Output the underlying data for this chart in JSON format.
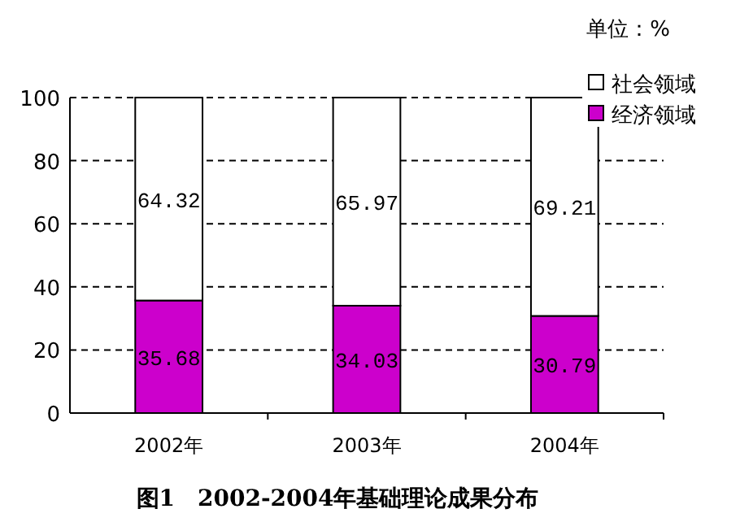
{
  "chart_data": {
    "type": "bar",
    "stacked": true,
    "title": "图1　2002-2004年基础理论成果分布",
    "annotations": [
      "单位：%"
    ],
    "categories": [
      "2002年",
      "2003年",
      "2004年"
    ],
    "series": [
      {
        "name": "经济领域",
        "color": "#cc00cc",
        "values": [
          35.68,
          34.03,
          30.79
        ]
      },
      {
        "name": "社会领域",
        "color": "#ffffff",
        "values": [
          64.32,
          65.97,
          69.21
        ]
      }
    ],
    "ylim": [
      0,
      100
    ],
    "yticks": [
      0,
      20,
      40,
      60,
      80,
      100
    ],
    "grid": "y",
    "line_style": "dashed",
    "legend": "top right",
    "data_labels": true
  }
}
